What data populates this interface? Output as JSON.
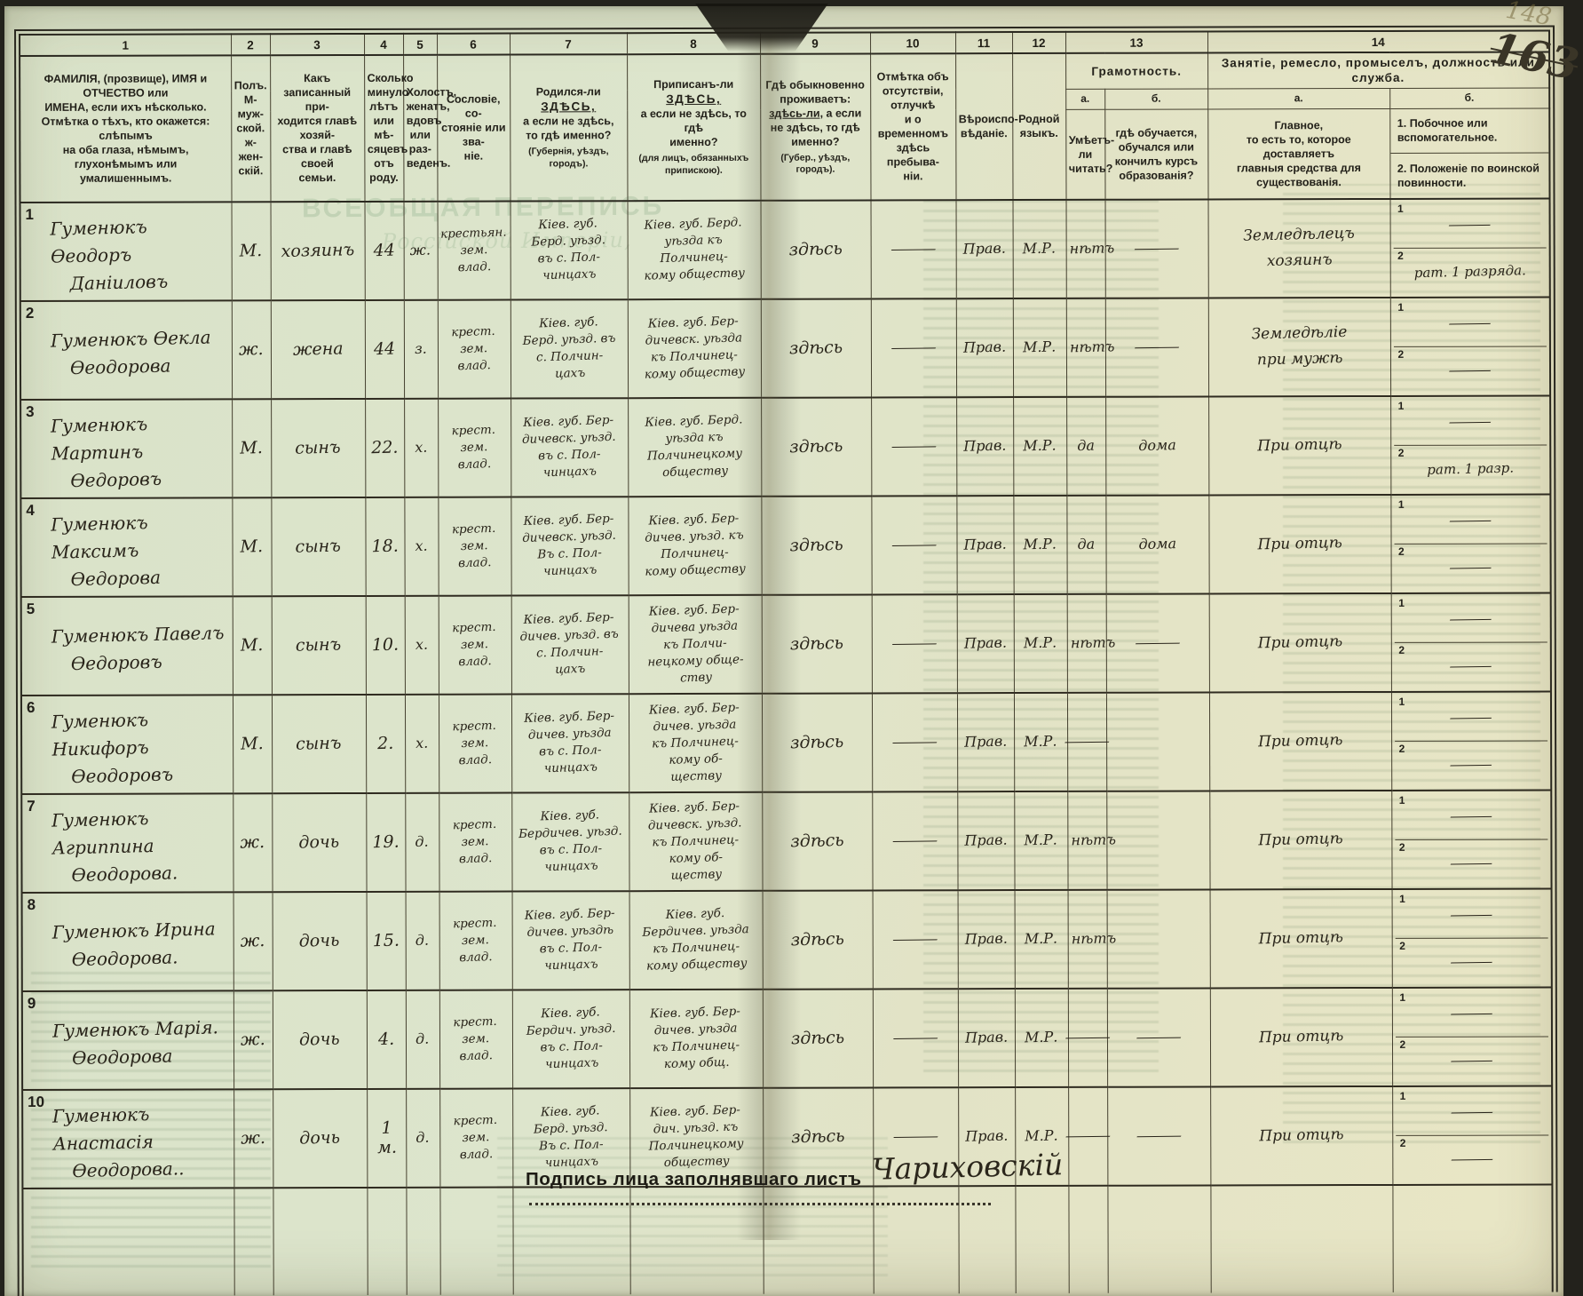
{
  "page_numbers": {
    "faint": "148",
    "hand": "163"
  },
  "bleedthrough": {
    "title1": "ВСЕОБЩАЯ ПЕРЕПИСЬ",
    "title2": "Россійской Имперіи,"
  },
  "header": {
    "nums": [
      "1",
      "2",
      "3",
      "4",
      "5",
      "6",
      "7",
      "8",
      "9",
      "10",
      "11",
      "12",
      "13",
      "14"
    ],
    "c1": "ФАМИЛІЯ, (прозвище), ИМЯ и ОТЧЕСТВО или\nИМЕНА, если ихъ нѣсколько.\nОтмѣтка о тѣхъ, кто окажется: слѣпымъ\nна оба глаза, нѣмымъ, глухонѣмымъ или\nумалишеннымъ.",
    "c2": "Полъ.\nМ-муж-\nской.\nж-жен-\nскій.",
    "c3": "Какъ записанный при-\nходится главѣ хозяй-\nства и главѣ своей\nсемьи.",
    "c4": "Сколько\nминуло\nлѣтъ\nили мѣ-\nсяцевъ\nотъ роду.",
    "c5": "Холостъ,\nженатъ,\nвдовъ\nили раз-\nведенъ.",
    "c6": "Сословіе, со-\nстояніе или зва-\nніе.",
    "c7_pre": "Родился-ли",
    "c7_u": "ЗДѢСЬ,",
    "c7_rest": "а если не здѣсь,\nто гдѣ именно?",
    "c7_note": "(Губернія, уѣздъ, городъ).",
    "c8_pre": "Приписанъ-ли",
    "c8_u": "ЗДѢСЬ,",
    "c8_rest": "а если не здѣсь, то гдѣ\nименно?",
    "c8_note": "(для лицъ, обязанныхъ\nприпискою).",
    "c9_top": "Гдѣ обыкновенно\nпроживаетъ:",
    "c9_u": "здѣсь-ли,",
    "c9_rest": " а если\nне здѣсь, то гдѣ\nименно?",
    "c9_note": "(Губер., уѣздъ, городъ).",
    "c10": "Отмѣтка объ\nотсутствіи, отлучкѣ\nи о временномъ\nздѣсь пребыва-\nніи.",
    "c11": "Вѣроиспо-\nвѣданіе.",
    "c12": "Родной\nязыкъ.",
    "c13_title": "Грамотность.",
    "c13a_label": "а.",
    "c13b_label": "б.",
    "c13a": "Умѣетъ-\nли\nчитать?",
    "c13b": "гдѣ обучается,\nобучался или\nкончилъ курсъ\nобразованія?",
    "c14_title": "Занятіе, ремесло, промыселъ, должность или служба.",
    "c14a_label": "а.",
    "c14b_label": "б.",
    "c14a": "Главное,\nто есть то, которое доставляетъ\nглавныя средства для существованія.",
    "c14b1": "1. Побочное или вспомогательное.",
    "c14b2": "2. Положеніе по воинской повинности."
  },
  "rows": [
    {
      "num": "1",
      "name1": "Гуменюкъ Ѳеодоръ",
      "name2": "Даніиловъ",
      "sex": "М.",
      "relation": "хозяинъ",
      "age": "44",
      "marital": "ж.",
      "estate": "крестьян.\nзем.\nвлад.",
      "born": "Кіев. губ.\nБерд. уѣзд.\nвъ с. Пол-\nчинцахъ",
      "registered": "Кіев. губ. Берд.\nуѣзда къ\nПолчинец-\nкому обществу",
      "residence": "здѣсь",
      "absence": "—",
      "religion": "Прав.",
      "language": "М.Р.",
      "reads": "нѣтъ",
      "educated": "—",
      "occupation": "Земледѣлецъ\nхозяинъ",
      "side1": "—",
      "side2": "рат. 1 разряда."
    },
    {
      "num": "2",
      "name1": "Гуменюкъ Ѳекла",
      "name2": "Ѳеодорова",
      "sex": "ж.",
      "relation": "жена",
      "age": "44",
      "marital": "з.",
      "estate": "крест.\nзем.\nвлад.",
      "born": "Кіев. губ.\nБерд. уѣзд. въ\nс. Полчин-\nцахъ",
      "registered": "Кіев. губ. Бер-\nдичевск. уѣзда\nкъ Полчинец-\nкому обществу",
      "residence": "здѣсь",
      "absence": "—",
      "religion": "Прав.",
      "language": "М.Р.",
      "reads": "нѣтъ",
      "educated": "—",
      "occupation": "Земледѣліе\nпри мужѣ",
      "side1": "—",
      "side2": "—"
    },
    {
      "num": "3",
      "name1": "Гуменюкъ Мартинъ",
      "name2": "Ѳедоровъ",
      "sex": "М.",
      "relation": "сынъ",
      "age": "22.",
      "marital": "х.",
      "estate": "крест.\nзем.\nвлад.",
      "born": "Кіев. губ. Бер-\nдичевск. уѣзд.\nвъ с. Пол-\nчинцахъ",
      "registered": "Кіев. губ. Берд.\nуѣзда къ\nПолчинецкому\nобществу",
      "residence": "здѣсь",
      "absence": "—",
      "religion": "Прав.",
      "language": "М.Р.",
      "reads": "да",
      "educated": "дома",
      "occupation": "При отцѣ",
      "side1": "—",
      "side2": "рат. 1 разр."
    },
    {
      "num": "4",
      "name1": "Гуменюкъ Максимъ",
      "name2": "Ѳедорова",
      "sex": "М.",
      "relation": "сынъ",
      "age": "18.",
      "marital": "х.",
      "estate": "крест.\nзем.\nвлад.",
      "born": "Кіев. губ. Бер-\nдичевск. уѣзд.\nВъ с. Пол-\nчинцахъ",
      "registered": "Кіев. губ. Бер-\nдичев. уѣзд. къ\nПолчинец-\nкому обществу",
      "residence": "здѣсь",
      "absence": "—",
      "religion": "Прав.",
      "language": "М.Р.",
      "reads": "да",
      "educated": "дома",
      "occupation": "При отцѣ",
      "side1": "—",
      "side2": "—"
    },
    {
      "num": "5",
      "name1": "Гуменюкъ Павелъ",
      "name2": "Ѳедоровъ",
      "sex": "М.",
      "relation": "сынъ",
      "age": "10.",
      "marital": "х.",
      "estate": "крест.\nзем.\nвлад.",
      "born": "Кіев. губ. Бер-\nдичев. уѣзд. въ\nс. Полчин-\nцахъ",
      "registered": "Кіев. губ. Бер-\nдичева уѣзда\nкъ Полчи-\nнецкому обще-\nству",
      "residence": "здѣсь",
      "absence": "—",
      "religion": "Прав.",
      "language": "М.Р.",
      "reads": "нѣтъ",
      "educated": "—",
      "occupation": "При отцѣ",
      "side1": "—",
      "side2": "—"
    },
    {
      "num": "6",
      "name1": "Гуменюкъ Никифоръ",
      "name2": "Ѳеодоровъ",
      "sex": "М.",
      "relation": "сынъ",
      "age": "2.",
      "marital": "х.",
      "estate": "крест.\nзем.\nвлад.",
      "born": "Кіев. губ. Бер-\nдичев. уѣзда\nвъ с. Пол-\nчинцахъ",
      "registered": "Кіев. губ. Бер-\nдичев. уѣзда\nкъ Полчинец-\nкому об-\nществу",
      "residence": "здѣсь",
      "absence": "—",
      "religion": "Прав.",
      "language": "М.Р.",
      "reads": "—",
      "educated": "",
      "occupation": "При отцѣ",
      "side1": "—",
      "side2": "—"
    },
    {
      "num": "7",
      "name1": "Гуменюкъ Агриппина",
      "name2": "Ѳеодорова.",
      "sex": "ж.",
      "relation": "дочь",
      "age": "19.",
      "marital": "д.",
      "estate": "крест.\nзем.\nвлад.",
      "born": "Кіев. губ.\nБердичев. уѣзд.\nвъ с. Пол-\nчинцахъ",
      "registered": "Кіев. губ. Бер-\nдичевск. уѣзд.\nкъ Полчинец-\nкому об-\nществу",
      "residence": "здѣсь",
      "absence": "—",
      "religion": "Прав.",
      "language": "М.Р.",
      "reads": "нѣтъ",
      "educated": "",
      "occupation": "При отцѣ",
      "side1": "—",
      "side2": "—"
    },
    {
      "num": "8",
      "name1": "Гуменюкъ Ирина",
      "name2": "Ѳеодорова.",
      "sex": "ж.",
      "relation": "дочь",
      "age": "15.",
      "marital": "д.",
      "estate": "крест.\nзем.\nвлад.",
      "born": "Кіев. губ. Бер-\nдичев. уѣздѣ\nвъ с. Пол-\nчинцахъ",
      "registered": "Кіев. губ.\nБердичев. уѣзда\nкъ Полчинец-\nкому обществу",
      "residence": "здѣсь",
      "absence": "—",
      "religion": "Прав.",
      "language": "М.Р.",
      "reads": "нѣтъ",
      "educated": "",
      "occupation": "При отцѣ",
      "side1": "—",
      "side2": "—"
    },
    {
      "num": "9",
      "name1": "Гуменюкъ Марія.",
      "name2": "Ѳеодорова",
      "sex": "ж.",
      "relation": "дочь",
      "age": "4.",
      "marital": "д.",
      "estate": "крест.\nзем.\nвлад.",
      "born": "Кіев. губ.\nБердич. уѣзд.\nвъ с. Пол-\nчинцахъ",
      "registered": "Кіев. губ. Бер-\nдичев. уѣзда\nкъ Полчинец-\nкому общ.",
      "residence": "здѣсь",
      "absence": "—",
      "religion": "Прав.",
      "language": "М.Р.",
      "reads": "—",
      "educated": "—",
      "occupation": "При отцѣ",
      "side1": "—",
      "side2": "—"
    },
    {
      "num": "10",
      "name1": "Гуменюкъ Анастасія",
      "name2": "Ѳеодорова..",
      "sex": "ж.",
      "relation": "дочь",
      "age": "1 м.",
      "marital": "д.",
      "estate": "крест.\nзем.\nвлад.",
      "born": "Кіев. губ.\nБерд. уѣзд.\nВъ с. Пол-\nчинцахъ",
      "registered": "Кіев. губ. Бер-\nдич. уѣзд. къ\nПолчинецкому\nобществу",
      "residence": "здѣсь",
      "absence": "—",
      "religion": "Прав.",
      "language": "М.Р.",
      "reads": "—",
      "educated": "—",
      "occupation": "При отцѣ",
      "side1": "—",
      "side2": "—"
    }
  ],
  "footer": {
    "signature_label": "Подпись лица заполнявшаго листъ",
    "signature_name": "Чариховскій"
  }
}
